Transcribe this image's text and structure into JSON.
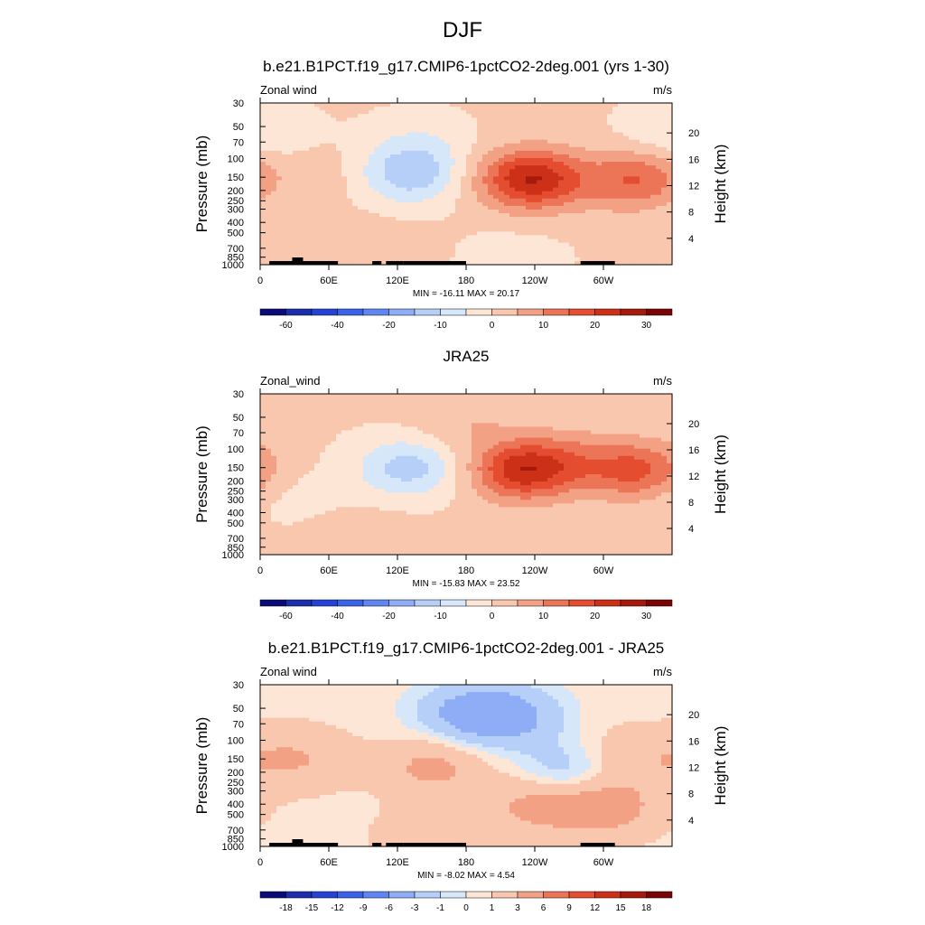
{
  "figure_title": "DJF",
  "colors": {
    "cmap_main": [
      "#0b0b77",
      "#1b2fae",
      "#2443d4",
      "#3a63ea",
      "#5f86f2",
      "#8eadf6",
      "#b6cff8",
      "#d6e7fa",
      "#fde6d5",
      "#f9c6ae",
      "#f3a184",
      "#ec7457",
      "#e44d2f",
      "#cc3118",
      "#a61a0e",
      "#7a0505"
    ],
    "land": "#000000"
  },
  "chart_data": [
    {
      "type": "heatmap",
      "name": "model",
      "title": "b.e21.B1PCT.f19_g17.CMIP6-1pctCO2-2deg.001 (yrs 1-30)",
      "left_label": "Zonal wind",
      "right_label": "m/s",
      "ylabel": "Pressure (mb)",
      "y2label": "Height (km)",
      "xticks": [
        "0",
        "60E",
        "120E",
        "180",
        "120W",
        "60W"
      ],
      "yticks": [
        "30",
        "50",
        "70",
        "100",
        "150",
        "200",
        "250",
        "300",
        "400",
        "500",
        "700",
        "850",
        "1000"
      ],
      "y2ticks": [
        "20",
        "16",
        "12",
        "8",
        "4"
      ],
      "stats": "MIN = -16.11  MAX =  20.17",
      "levels": [
        -70,
        -60,
        -50,
        -40,
        -30,
        -20,
        -15,
        -10,
        -5,
        0,
        5,
        10,
        15,
        20,
        25,
        30,
        35
      ],
      "colorbar_labels": [
        "-60",
        "-40",
        "-20",
        "-10",
        "0",
        "10",
        "20",
        "30"
      ],
      "show_land": true,
      "features": [
        {
          "lon": 0,
          "p": 60,
          "value": -5
        },
        {
          "lon": 140,
          "p": 70,
          "value": -4
        },
        {
          "lon": 130,
          "p": 140,
          "value": -14
        },
        {
          "lon": 240,
          "p": 160,
          "value": 17
        },
        {
          "lon": 330,
          "p": 160,
          "value": 15
        },
        {
          "lon": 230,
          "p": 150,
          "value": 8
        },
        {
          "lon": 90,
          "p": 780,
          "value": 4
        },
        {
          "lon": 220,
          "p": 900,
          "value": -3
        },
        {
          "lon": 20,
          "p": 220,
          "value": -2
        },
        {
          "lon": 60,
          "p": 150,
          "value": 3
        }
      ]
    },
    {
      "type": "heatmap",
      "name": "obs",
      "title": "JRA25",
      "left_label": "Zonal_wind",
      "right_label": "m/s",
      "ylabel": "Pressure (mb)",
      "y2label": "Height (km)",
      "xticks": [
        "0",
        "60E",
        "120E",
        "180",
        "120W",
        "60W"
      ],
      "yticks": [
        "30",
        "50",
        "70",
        "100",
        "150",
        "200",
        "250",
        "300",
        "400",
        "500",
        "700",
        "850",
        "1000"
      ],
      "y2ticks": [
        "20",
        "16",
        "12",
        "8",
        "4"
      ],
      "stats": "MIN = -15.83  MAX =  23.52",
      "levels": [
        -70,
        -60,
        -50,
        -40,
        -30,
        -20,
        -15,
        -10,
        -5,
        0,
        5,
        10,
        15,
        20,
        25,
        30,
        35
      ],
      "colorbar_labels": [
        "-60",
        "-40",
        "-20",
        "-10",
        "0",
        "10",
        "20",
        "30"
      ],
      "show_land": false,
      "features": [
        {
          "lon": 130,
          "p": 150,
          "value": -13
        },
        {
          "lon": 230,
          "p": 160,
          "value": 22
        },
        {
          "lon": 330,
          "p": 160,
          "value": 16
        },
        {
          "lon": 180,
          "p": 60,
          "value": 4
        },
        {
          "lon": 20,
          "p": 250,
          "value": -3
        },
        {
          "lon": 100,
          "p": 800,
          "value": 3
        },
        {
          "lon": 270,
          "p": 120,
          "value": 6
        }
      ]
    },
    {
      "type": "heatmap",
      "name": "diff",
      "title": "b.e21.B1PCT.f19_g17.CMIP6-1pctCO2-2deg.001 - JRA25",
      "left_label": "Zonal wind",
      "right_label": "m/s",
      "ylabel": "Pressure (mb)",
      "y2label": "Height (km)",
      "xticks": [
        "0",
        "60E",
        "120E",
        "180",
        "120W",
        "60W"
      ],
      "yticks": [
        "30",
        "50",
        "70",
        "100",
        "150",
        "200",
        "250",
        "300",
        "400",
        "500",
        "700",
        "850",
        "1000"
      ],
      "y2ticks": [
        "20",
        "16",
        "12",
        "8",
        "4"
      ],
      "stats": "MIN = -8.02  MAX =   4.54",
      "levels": [
        -21,
        -18,
        -15,
        -12,
        -9,
        -6,
        -3,
        -1,
        0,
        1,
        3,
        6,
        9,
        12,
        15,
        18,
        21
      ],
      "colorbar_labels": [
        "-18",
        "-15",
        "-12",
        "-9",
        "-6",
        "-3",
        "-1",
        "0",
        "1",
        "3",
        "6",
        "9",
        "12",
        "15",
        "18"
      ],
      "show_land": true,
      "features": [
        {
          "lon": 180,
          "p": 55,
          "value": -4
        },
        {
          "lon": 220,
          "p": 60,
          "value": -4
        },
        {
          "lon": 30,
          "p": 150,
          "value": 2.5
        },
        {
          "lon": 150,
          "p": 180,
          "value": 3
        },
        {
          "lon": 240,
          "p": 400,
          "value": 3
        },
        {
          "lon": 300,
          "p": 420,
          "value": 4
        },
        {
          "lon": 270,
          "p": 200,
          "value": -3
        },
        {
          "lon": 150,
          "p": 900,
          "value": 2
        },
        {
          "lon": 320,
          "p": 150,
          "value": 2
        }
      ]
    }
  ]
}
